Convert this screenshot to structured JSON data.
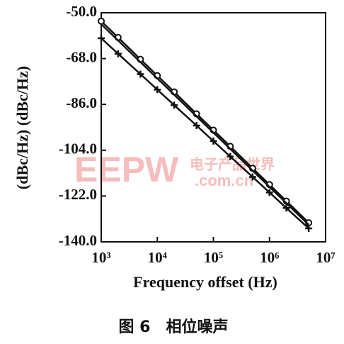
{
  "chart_data": {
    "type": "line",
    "xlabel": "Frequency offset (Hz)",
    "ylabel": "(dBc/Hz) (dBc/Hz)",
    "caption": "图 6　相位噪声",
    "watermark": [
      "EEPW",
      ".com.cn",
      "电子产品世界"
    ],
    "xscale": "log",
    "x": [
      1000,
      2000,
      5000,
      10000,
      20000,
      50000,
      100000,
      200000,
      500000,
      1000000,
      2000000,
      5000000
    ],
    "series": [
      {
        "color": "#111111",
        "marker": "circle",
        "values": [
          -53.3,
          -59.7,
          -68.3,
          -74.7,
          -81.1,
          -89.7,
          -96.1,
          -102.5,
          -111.1,
          -117.5,
          -124.0,
          -132.5
        ]
      },
      {
        "color": "#111111",
        "marker": "none",
        "values": [
          -54.5,
          -60.9,
          -69.4,
          -75.8,
          -82.2,
          -90.7,
          -97.1,
          -103.5,
          -112.0,
          -118.4,
          -124.8,
          -133.3
        ]
      },
      {
        "color": "#111111",
        "marker": "cross",
        "values": [
          -60.0,
          -66.1,
          -74.1,
          -80.2,
          -86.3,
          -94.3,
          -100.4,
          -106.5,
          -114.5,
          -120.6,
          -126.7,
          -134.7
        ]
      }
    ],
    "xlim": [
      1000,
      10000000
    ],
    "xticks": [
      {
        "value": 1000,
        "label": "10³"
      },
      {
        "value": 10000,
        "label": "10⁴"
      },
      {
        "value": 100000,
        "label": "10⁵"
      },
      {
        "value": 1000000,
        "label": "10⁶"
      },
      {
        "value": 10000000,
        "label": "10⁷"
      }
    ],
    "ylim": [
      -140,
      -50
    ],
    "yticks": [
      {
        "value": -50,
        "label": "-50.0"
      },
      {
        "value": -68,
        "label": "-68.0"
      },
      {
        "value": -86,
        "label": "-86.0"
      },
      {
        "value": -104,
        "label": "-104.0"
      },
      {
        "value": -122,
        "label": "-122.0"
      },
      {
        "value": -140,
        "label": "-140.0"
      }
    ],
    "grid": false
  }
}
